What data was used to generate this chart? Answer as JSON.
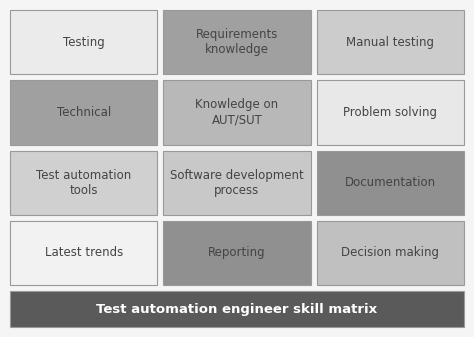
{
  "title": "Test automation engineer skill matrix",
  "title_color": "#ffffff",
  "title_bg": "#5a5a5a",
  "background_color": "#f5f5f5",
  "border_color": "#999999",
  "cells": [
    {
      "row": 0,
      "col": 0,
      "text": "Testing",
      "bg": "#ebebeb",
      "text_color": "#444444"
    },
    {
      "row": 0,
      "col": 1,
      "text": "Requirements\nknowledge",
      "bg": "#a0a0a0",
      "text_color": "#444444"
    },
    {
      "row": 0,
      "col": 2,
      "text": "Manual testing",
      "bg": "#cccccc",
      "text_color": "#444444"
    },
    {
      "row": 1,
      "col": 0,
      "text": "Technical",
      "bg": "#a0a0a0",
      "text_color": "#444444"
    },
    {
      "row": 1,
      "col": 1,
      "text": "Knowledge on\nAUT/SUT",
      "bg": "#b8b8b8",
      "text_color": "#444444"
    },
    {
      "row": 1,
      "col": 2,
      "text": "Problem solving",
      "bg": "#e8e8e8",
      "text_color": "#444444"
    },
    {
      "row": 2,
      "col": 0,
      "text": "Test automation\ntools",
      "bg": "#d0d0d0",
      "text_color": "#444444"
    },
    {
      "row": 2,
      "col": 1,
      "text": "Software development\nprocess",
      "bg": "#c8c8c8",
      "text_color": "#444444"
    },
    {
      "row": 2,
      "col": 2,
      "text": "Documentation",
      "bg": "#909090",
      "text_color": "#444444"
    },
    {
      "row": 3,
      "col": 0,
      "text": "Latest trends",
      "bg": "#f2f2f2",
      "text_color": "#444444"
    },
    {
      "row": 3,
      "col": 1,
      "text": "Reporting",
      "bg": "#909090",
      "text_color": "#444444"
    },
    {
      "row": 3,
      "col": 2,
      "text": "Decision making",
      "bg": "#c0c0c0",
      "text_color": "#444444"
    }
  ],
  "n_rows": 4,
  "n_cols": 3,
  "font_size": 8.5,
  "title_font_size": 9.5
}
